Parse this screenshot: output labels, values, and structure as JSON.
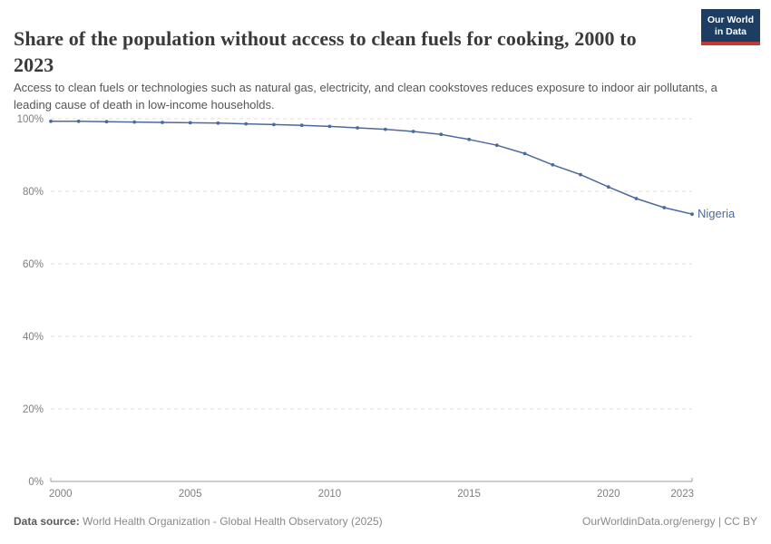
{
  "header": {
    "title": "Share of the population without access to clean fuels for cooking, 2000 to 2023",
    "logo": {
      "line1": "Our World",
      "line2": "in Data"
    }
  },
  "subtitle": "Access to clean fuels or technologies such as natural gas, electricity, and clean cookstoves reduces exposure to indoor air pollutants, a leading cause of death in low-income households.",
  "chart_data": {
    "type": "line",
    "title": "Share of the population without access to clean fuels for cooking, 2000 to 2023",
    "xlabel": "",
    "ylabel": "",
    "xlim": [
      2000,
      2023
    ],
    "ylim": [
      0,
      100
    ],
    "grid": "horizontal-dashed",
    "legend_position": "end-of-line-label",
    "x_ticks": [
      {
        "value": 2000,
        "label": "2000"
      },
      {
        "value": 2005,
        "label": "2005"
      },
      {
        "value": 2010,
        "label": "2010"
      },
      {
        "value": 2015,
        "label": "2015"
      },
      {
        "value": 2020,
        "label": "2020"
      },
      {
        "value": 2023,
        "label": "2023"
      }
    ],
    "y_ticks": [
      {
        "value": 100,
        "label": "100%"
      },
      {
        "value": 80,
        "label": "80%"
      },
      {
        "value": 60,
        "label": "60%"
      },
      {
        "value": 40,
        "label": "40%"
      },
      {
        "value": 20,
        "label": "20%"
      },
      {
        "value": 0,
        "label": "0%"
      }
    ],
    "series": [
      {
        "name": "Nigeria",
        "color": "#4c6a9c",
        "x": [
          2000,
          2001,
          2002,
          2003,
          2004,
          2005,
          2006,
          2007,
          2008,
          2009,
          2010,
          2011,
          2012,
          2013,
          2014,
          2015,
          2016,
          2017,
          2018,
          2019,
          2020,
          2021,
          2022,
          2023
        ],
        "values": [
          99.3,
          99.3,
          99.2,
          99.1,
          99.0,
          98.9,
          98.8,
          98.6,
          98.4,
          98.2,
          97.9,
          97.5,
          97.1,
          96.5,
          95.7,
          94.3,
          92.7,
          90.4,
          87.3,
          84.6,
          81.2,
          78.0,
          75.5,
          73.7
        ]
      }
    ]
  },
  "footer": {
    "datasource_label": "Data source:",
    "datasource_value": "World Health Organization - Global Health Observatory (2025)",
    "rights": "OurWorldinData.org/energy | CC BY"
  },
  "colors": {
    "line": "#4c6a9c",
    "logo_bg": "#1d3d63",
    "logo_stripe": "#c7392e",
    "gridline": "#dcdcdc",
    "axis": "#9e9e9e",
    "tick_text": "#7e7e7e"
  }
}
